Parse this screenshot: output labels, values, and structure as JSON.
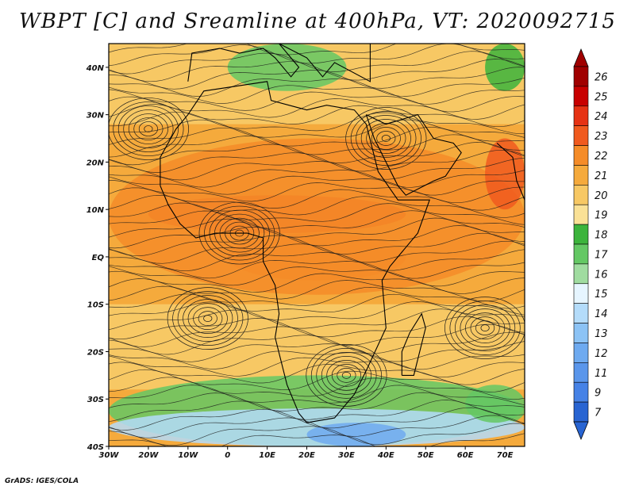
{
  "title": "WBPT [C] and Sreamline at 400hPa, VT: 2020092715",
  "footer": "GrADS: IGES/COLA",
  "map": {
    "lon_range": [
      -30,
      75
    ],
    "lat_range": [
      -40,
      45
    ],
    "lon_ticks": [
      {
        "value": -30,
        "label": "30W"
      },
      {
        "value": -20,
        "label": "20W"
      },
      {
        "value": -10,
        "label": "10W"
      },
      {
        "value": 0,
        "label": "0"
      },
      {
        "value": 10,
        "label": "10E"
      },
      {
        "value": 20,
        "label": "20E"
      },
      {
        "value": 30,
        "label": "30E"
      },
      {
        "value": 40,
        "label": "40E"
      },
      {
        "value": 50,
        "label": "50E"
      },
      {
        "value": 60,
        "label": "60E"
      },
      {
        "value": 70,
        "label": "70E"
      }
    ],
    "lat_ticks": [
      {
        "value": 40,
        "label": "40N"
      },
      {
        "value": 30,
        "label": "30N"
      },
      {
        "value": 20,
        "label": "20N"
      },
      {
        "value": 10,
        "label": "10N"
      },
      {
        "value": 0,
        "label": "EQ"
      },
      {
        "value": -10,
        "label": "10S"
      },
      {
        "value": -20,
        "label": "20S"
      },
      {
        "value": -30,
        "label": "30S"
      },
      {
        "value": -40,
        "label": "40S"
      }
    ],
    "field_regions": [
      {
        "level": 23,
        "lon": [
          -20,
          45
        ],
        "lat": [
          5,
          13
        ]
      },
      {
        "level": 22,
        "lon": [
          0,
          45
        ],
        "lat": [
          -5,
          5
        ]
      },
      {
        "level": 22,
        "lon": [
          -30,
          75
        ],
        "lat": [
          -8,
          25
        ]
      },
      {
        "level": 23,
        "lon": [
          65,
          75
        ],
        "lat": [
          10,
          25
        ]
      },
      {
        "level": 17,
        "lon": [
          0,
          30
        ],
        "lat": [
          35,
          45
        ]
      },
      {
        "level": 17,
        "lon": [
          -30,
          75
        ],
        "lat": [
          -40,
          -25
        ]
      },
      {
        "level": 14,
        "lon": [
          -30,
          75
        ],
        "lat": [
          -40,
          -32
        ]
      },
      {
        "level": 12,
        "lon": [
          20,
          45
        ],
        "lat": [
          -40,
          -35
        ]
      },
      {
        "level": 17,
        "lon": [
          60,
          75
        ],
        "lat": [
          -35,
          -27
        ]
      },
      {
        "level": 18,
        "lon": [
          65,
          75
        ],
        "lat": [
          35,
          45
        ]
      }
    ],
    "vortices": [
      {
        "lon": -20,
        "lat": 27
      },
      {
        "lon": 40,
        "lat": 25
      },
      {
        "lon": -5,
        "lat": -13
      },
      {
        "lon": 65,
        "lat": -15
      },
      {
        "lon": 3,
        "lat": 5
      },
      {
        "lon": 30,
        "lat": -25
      }
    ]
  },
  "colorbar": {
    "levels": [
      {
        "label": "26",
        "color": "#a00000"
      },
      {
        "label": "25",
        "color": "#c80000"
      },
      {
        "label": "24",
        "color": "#e63214"
      },
      {
        "label": "23",
        "color": "#f05a1e"
      },
      {
        "label": "22",
        "color": "#f58c28"
      },
      {
        "label": "21",
        "color": "#f5aa3c"
      },
      {
        "label": "20",
        "color": "#f7c864"
      },
      {
        "label": "19",
        "color": "#fae196"
      },
      {
        "label": "18",
        "color": "#3cb43c"
      },
      {
        "label": "17",
        "color": "#64c864"
      },
      {
        "label": "16",
        "color": "#a0dca0"
      },
      {
        "label": "15",
        "color": "#e6f5ff"
      },
      {
        "label": "14",
        "color": "#b4dcfa"
      },
      {
        "label": "13",
        "color": "#8cc3f5"
      },
      {
        "label": "12",
        "color": "#6eaaf0"
      },
      {
        "label": "11",
        "color": "#5a96eb"
      },
      {
        "label": "9",
        "color": "#4682e6"
      },
      {
        "label": "7",
        "color": "#2864d2"
      }
    ]
  }
}
